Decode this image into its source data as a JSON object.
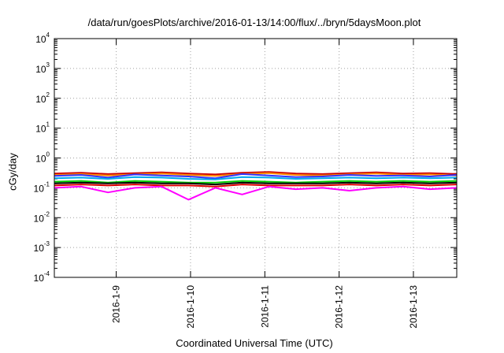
{
  "chart_data": {
    "type": "line",
    "title": "/data/run/goesPlots/archive/2016-01-13/14:00/flux/../bryn/5daysMoon.plot",
    "xlabel": "Coordinated Universal Time (UTC)",
    "ylabel": "cGy/day",
    "yscale": "log",
    "ylim": [
      0.0001,
      10000
    ],
    "yticks": [
      {
        "base": "10",
        "exp": "4"
      },
      {
        "base": "10",
        "exp": "3"
      },
      {
        "base": "10",
        "exp": "2"
      },
      {
        "base": "10",
        "exp": "1"
      },
      {
        "base": "10",
        "exp": "0"
      },
      {
        "base": "10",
        "exp": "-1"
      },
      {
        "base": "10",
        "exp": "-2"
      },
      {
        "base": "10",
        "exp": "-3"
      },
      {
        "base": "10",
        "exp": "-4"
      }
    ],
    "xlim": [
      "2016-01-08 04:00",
      "2016-01-13 14:00"
    ],
    "xticks": [
      "2016-1-9",
      "2016-1-10",
      "2016-1-11",
      "2016-1-12",
      "2016-1-13"
    ],
    "grid": true,
    "series": [
      {
        "color": "#cc0000",
        "values": [
          0.3,
          0.32,
          0.29,
          0.31,
          0.33,
          0.3,
          0.28,
          0.32,
          0.34,
          0.3,
          0.29,
          0.31,
          0.33,
          0.3,
          0.31,
          0.29
        ]
      },
      {
        "color": "#ff8c00",
        "values": [
          0.27,
          0.29,
          0.26,
          0.28,
          0.3,
          0.27,
          0.25,
          0.29,
          0.31,
          0.27,
          0.26,
          0.28,
          0.3,
          0.27,
          0.28,
          0.26
        ]
      },
      {
        "color": "#3333ff",
        "values": [
          0.25,
          0.27,
          0.22,
          0.28,
          0.26,
          0.24,
          0.21,
          0.29,
          0.26,
          0.23,
          0.24,
          0.27,
          0.25,
          0.26,
          0.24,
          0.27
        ]
      },
      {
        "color": "#00aaee",
        "values": [
          0.21,
          0.22,
          0.2,
          0.23,
          0.22,
          0.2,
          0.19,
          0.23,
          0.22,
          0.2,
          0.21,
          0.22,
          0.21,
          0.22,
          0.21,
          0.22
        ]
      },
      {
        "color": "#00cc00",
        "values": [
          0.16,
          0.17,
          0.15,
          0.17,
          0.16,
          0.15,
          0.15,
          0.17,
          0.16,
          0.15,
          0.16,
          0.17,
          0.16,
          0.17,
          0.16,
          0.17
        ]
      },
      {
        "color": "#000000",
        "values": [
          0.14,
          0.15,
          0.14,
          0.15,
          0.14,
          0.14,
          0.13,
          0.15,
          0.14,
          0.14,
          0.14,
          0.15,
          0.14,
          0.15,
          0.14,
          0.15
        ]
      },
      {
        "color": "#dd0000",
        "values": [
          0.12,
          0.13,
          0.12,
          0.13,
          0.12,
          0.12,
          0.11,
          0.13,
          0.12,
          0.12,
          0.12,
          0.13,
          0.12,
          0.13,
          0.12,
          0.13
        ]
      },
      {
        "color": "#ff00ff",
        "values": [
          0.1,
          0.11,
          0.07,
          0.1,
          0.11,
          0.04,
          0.1,
          0.06,
          0.11,
          0.09,
          0.1,
          0.08,
          0.1,
          0.11,
          0.09,
          0.1
        ]
      }
    ]
  }
}
